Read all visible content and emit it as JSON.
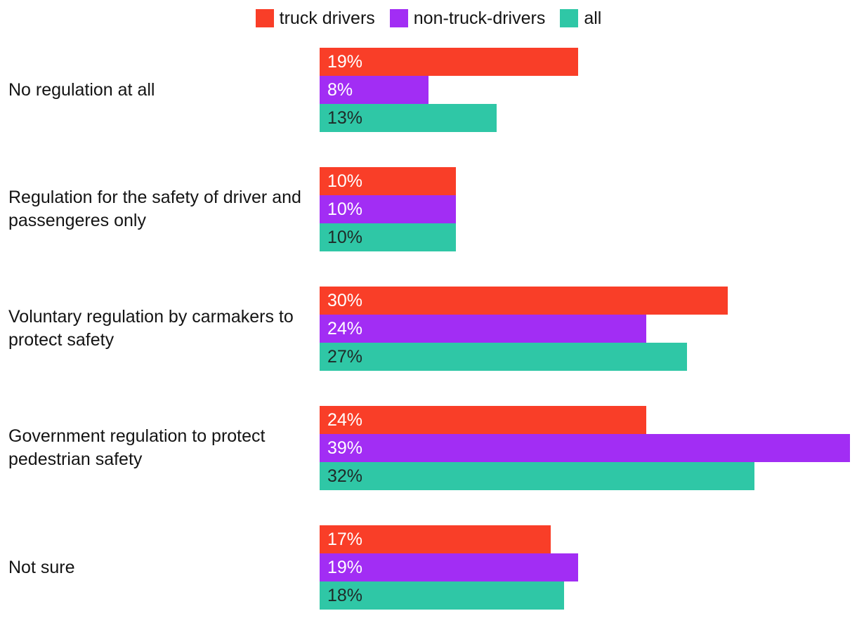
{
  "chart_data": {
    "type": "bar",
    "orientation": "horizontal",
    "title": "",
    "xlabel": "",
    "ylabel": "",
    "grid": false,
    "legend_position": "top",
    "xlim": [
      0,
      39
    ],
    "categories": [
      "No regulation at all",
      "Regulation for the safety of driver and passengeres only",
      "Voluntary regulation by carmakers to protect safety",
      "Government regulation to protect pedestrian safety",
      "Not sure"
    ],
    "series": [
      {
        "name": "truck drivers",
        "color": "#F93E28",
        "label_color": "#FFFFFF",
        "values": [
          19,
          10,
          30,
          24,
          17
        ]
      },
      {
        "name": "non-truck-drivers",
        "color": "#A22DF4",
        "label_color": "#FFFFFF",
        "values": [
          8,
          10,
          24,
          39,
          19
        ]
      },
      {
        "name": "all",
        "color": "#2FC7A6",
        "label_color": "#1F2A28",
        "values": [
          13,
          10,
          27,
          32,
          18
        ]
      }
    ],
    "value_labels": [
      [
        "19%",
        "8%",
        "13%"
      ],
      [
        "10%",
        "10%",
        "10%"
      ],
      [
        "30%",
        "24%",
        "27%"
      ],
      [
        "24%",
        "39%",
        "32%"
      ],
      [
        "17%",
        "19%",
        "18%"
      ]
    ],
    "text_color": "#141414",
    "background": "#FFFFFF"
  }
}
